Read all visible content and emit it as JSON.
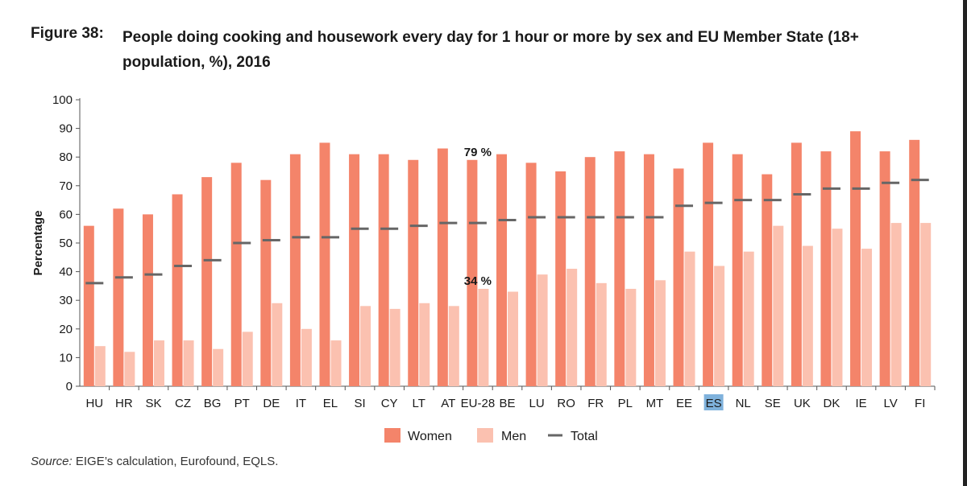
{
  "figure": {
    "label": "Figure 38:",
    "title": "People doing cooking and housework every day for 1 hour or more by sex and EU Member State (18+ population, %), 2016",
    "source_label": "Source:",
    "source_text": " EIGE’s calculation, Eurofound, EQLS."
  },
  "colors": {
    "women": "#f4846a",
    "men": "#fbc1b0",
    "total": "#666666",
    "highlight": "#7fb2dc"
  },
  "chart_data": {
    "type": "bar",
    "ylabel": "Percentage",
    "ylim": [
      0,
      100
    ],
    "yticks": [
      0,
      10,
      20,
      30,
      40,
      50,
      60,
      70,
      80,
      90,
      100
    ],
    "categories": [
      "HU",
      "HR",
      "SK",
      "CZ",
      "BG",
      "PT",
      "DE",
      "IT",
      "EL",
      "SI",
      "CY",
      "LT",
      "AT",
      "EU-28",
      "BE",
      "LU",
      "RO",
      "FR",
      "PL",
      "MT",
      "EE",
      "ES",
      "NL",
      "SE",
      "UK",
      "DK",
      "IE",
      "LV",
      "FI"
    ],
    "highlighted_category": "ES",
    "series": [
      {
        "name": "Women",
        "values": [
          56,
          62,
          60,
          67,
          73,
          78,
          72,
          81,
          85,
          81,
          81,
          79,
          83,
          79,
          81,
          78,
          75,
          80,
          82,
          81,
          76,
          85,
          81,
          74,
          85,
          82,
          89,
          82,
          86
        ]
      },
      {
        "name": "Men",
        "values": [
          14,
          12,
          16,
          16,
          13,
          19,
          29,
          20,
          16,
          28,
          27,
          29,
          28,
          34,
          33,
          39,
          41,
          36,
          34,
          37,
          47,
          42,
          47,
          56,
          49,
          55,
          48,
          57,
          57
        ]
      },
      {
        "name": "Total",
        "values": [
          36,
          38,
          39,
          42,
          44,
          50,
          51,
          52,
          52,
          55,
          55,
          56,
          57,
          57,
          58,
          59,
          59,
          59,
          59,
          59,
          63,
          64,
          65,
          65,
          67,
          69,
          69,
          71,
          72
        ]
      }
    ],
    "annotations": [
      {
        "text": "79 %",
        "category": "EU-28",
        "value": 79
      },
      {
        "text": "34 %",
        "category": "EU-28",
        "value": 34
      }
    ],
    "legend_position": "bottom"
  }
}
